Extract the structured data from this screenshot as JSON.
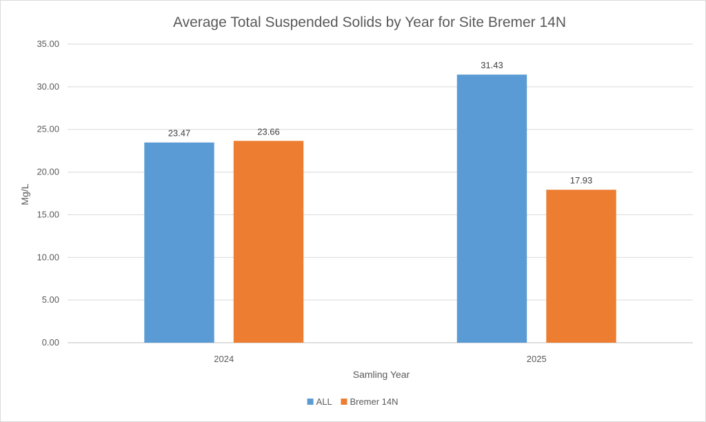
{
  "chart_data": {
    "type": "bar",
    "title": "Average Total Suspended Solids by Year for Site Bremer 14N",
    "xlabel": "Samling Year",
    "ylabel": "Mg/L",
    "categories": [
      "2024",
      "2025"
    ],
    "series": [
      {
        "name": "ALL",
        "values": [
          23.47,
          31.43
        ],
        "labels": [
          "23.47",
          "31.43"
        ],
        "color": "#5b9bd5"
      },
      {
        "name": "Bremer 14N",
        "values": [
          23.66,
          17.93
        ],
        "labels": [
          "23.66",
          "17.93"
        ],
        "color": "#ed7d31"
      }
    ],
    "ylim": [
      0,
      35
    ],
    "yticks": [
      "0.00",
      "5.00",
      "10.00",
      "15.00",
      "20.00",
      "25.00",
      "30.00",
      "35.00"
    ],
    "grid": true,
    "legend_position": "bottom"
  }
}
